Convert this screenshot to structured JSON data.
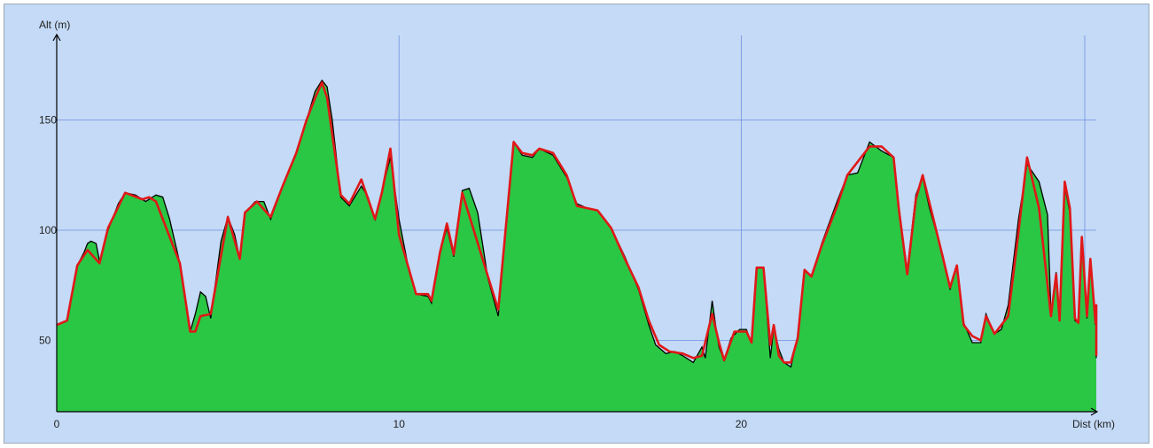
{
  "chart_data": {
    "type": "area",
    "title": "",
    "xlabel": "Dist (km)",
    "ylabel": "Alt (m)",
    "xlim": [
      0,
      30.4
    ],
    "ylim": [
      18,
      185
    ],
    "x_ticks": [
      0,
      10,
      20
    ],
    "y_ticks": [
      50,
      100,
      150
    ],
    "grid": true,
    "colors": {
      "background": "#c4daf6",
      "frame": "#9aa8b8",
      "grid": "#6f8fe0",
      "fill": "#2ac744",
      "profile_line": "#000000",
      "smoothed_line": "#e01818"
    },
    "series": [
      {
        "values": [
          [
            0.0,
            57
          ],
          [
            0.3,
            59
          ],
          [
            0.6,
            84
          ],
          [
            0.8,
            90
          ],
          [
            0.9,
            94
          ],
          [
            1.0,
            95
          ],
          [
            1.15,
            94
          ],
          [
            1.25,
            86
          ],
          [
            1.5,
            100
          ],
          [
            1.8,
            112
          ],
          [
            2.0,
            117
          ],
          [
            2.3,
            116
          ],
          [
            2.6,
            113
          ],
          [
            2.9,
            116
          ],
          [
            3.1,
            115
          ],
          [
            3.3,
            105
          ],
          [
            3.6,
            85
          ],
          [
            3.9,
            54
          ],
          [
            4.05,
            62
          ],
          [
            4.2,
            72
          ],
          [
            4.35,
            70
          ],
          [
            4.5,
            60
          ],
          [
            4.8,
            95
          ],
          [
            5.0,
            106
          ],
          [
            5.2,
            98
          ],
          [
            5.35,
            87
          ],
          [
            5.5,
            108
          ],
          [
            5.8,
            113
          ],
          [
            6.05,
            113
          ],
          [
            6.25,
            105
          ],
          [
            6.6,
            120
          ],
          [
            7.0,
            135
          ],
          [
            7.3,
            150
          ],
          [
            7.55,
            163
          ],
          [
            7.75,
            168
          ],
          [
            7.9,
            165
          ],
          [
            8.05,
            150
          ],
          [
            8.3,
            115
          ],
          [
            8.55,
            111
          ],
          [
            8.9,
            120
          ],
          [
            9.1,
            115
          ],
          [
            9.3,
            105
          ],
          [
            9.5,
            118
          ],
          [
            9.75,
            133
          ],
          [
            10.0,
            105
          ],
          [
            10.3,
            81
          ],
          [
            10.5,
            71
          ],
          [
            10.85,
            70
          ],
          [
            10.95,
            67
          ],
          [
            11.2,
            90
          ],
          [
            11.4,
            101
          ],
          [
            11.6,
            88
          ],
          [
            11.85,
            118
          ],
          [
            12.05,
            119
          ],
          [
            12.3,
            108
          ],
          [
            12.6,
            78
          ],
          [
            12.9,
            61
          ],
          [
            13.1,
            97
          ],
          [
            13.35,
            140
          ],
          [
            13.6,
            134
          ],
          [
            13.9,
            133
          ],
          [
            14.1,
            137
          ],
          [
            14.5,
            134
          ],
          [
            14.9,
            124
          ],
          [
            15.2,
            112
          ],
          [
            15.5,
            110
          ],
          [
            15.8,
            109
          ],
          [
            16.2,
            101
          ],
          [
            16.6,
            88
          ],
          [
            17.0,
            73
          ],
          [
            17.3,
            57
          ],
          [
            17.5,
            48
          ],
          [
            17.8,
            44
          ],
          [
            18.05,
            45
          ],
          [
            18.3,
            43
          ],
          [
            18.6,
            40
          ],
          [
            18.85,
            47
          ],
          [
            18.95,
            42
          ],
          [
            19.15,
            68
          ],
          [
            19.25,
            57
          ],
          [
            19.35,
            47
          ],
          [
            19.5,
            41
          ],
          [
            19.7,
            51
          ],
          [
            19.95,
            55
          ],
          [
            20.15,
            55
          ],
          [
            20.3,
            49
          ],
          [
            20.45,
            83
          ],
          [
            20.65,
            83
          ],
          [
            20.85,
            42
          ],
          [
            20.95,
            56
          ],
          [
            21.1,
            46
          ],
          [
            21.25,
            40
          ],
          [
            21.45,
            38
          ],
          [
            21.65,
            52
          ],
          [
            21.85,
            82
          ],
          [
            22.05,
            79
          ],
          [
            22.35,
            94
          ],
          [
            22.8,
            113
          ],
          [
            23.1,
            125
          ],
          [
            23.4,
            126
          ],
          [
            23.75,
            140
          ],
          [
            24.1,
            136
          ],
          [
            24.45,
            133
          ],
          [
            24.6,
            110
          ],
          [
            24.85,
            82
          ],
          [
            25.1,
            116
          ],
          [
            25.3,
            124
          ],
          [
            25.5,
            110
          ],
          [
            25.9,
            88
          ],
          [
            26.1,
            73
          ],
          [
            26.3,
            84
          ],
          [
            26.5,
            58
          ],
          [
            26.75,
            49
          ],
          [
            27.0,
            49
          ],
          [
            27.15,
            62
          ],
          [
            27.4,
            53
          ],
          [
            27.6,
            55
          ],
          [
            27.8,
            66
          ],
          [
            28.1,
            105
          ],
          [
            28.35,
            130
          ],
          [
            28.7,
            122
          ],
          [
            28.95,
            107
          ],
          [
            29.05,
            62
          ],
          [
            29.2,
            81
          ],
          [
            29.3,
            60
          ],
          [
            29.45,
            120
          ],
          [
            29.6,
            108
          ],
          [
            29.75,
            59
          ],
          [
            29.85,
            58
          ],
          [
            29.95,
            97
          ],
          [
            30.1,
            60
          ],
          [
            30.2,
            87
          ],
          [
            30.35,
            57
          ],
          [
            30.5,
            66
          ],
          [
            30.6,
            45
          ],
          [
            30.75,
            45
          ],
          [
            30.85,
            43
          ],
          [
            31.05,
            43
          ],
          [
            31.15,
            42
          ],
          [
            31.25,
            43
          ],
          [
            31.4,
            42
          ]
        ]
      },
      {
        "values": [
          [
            0.0,
            57
          ],
          [
            0.3,
            59
          ],
          [
            0.6,
            84
          ],
          [
            0.9,
            91
          ],
          [
            1.25,
            85
          ],
          [
            1.5,
            101
          ],
          [
            2.0,
            117
          ],
          [
            2.5,
            114
          ],
          [
            2.7,
            115
          ],
          [
            2.9,
            113
          ],
          [
            3.6,
            85
          ],
          [
            3.9,
            54
          ],
          [
            4.05,
            54
          ],
          [
            4.2,
            61
          ],
          [
            4.5,
            62
          ],
          [
            5.0,
            106
          ],
          [
            5.35,
            87
          ],
          [
            5.5,
            108
          ],
          [
            5.85,
            113
          ],
          [
            6.25,
            106
          ],
          [
            6.6,
            120
          ],
          [
            7.0,
            135
          ],
          [
            7.3,
            150
          ],
          [
            7.55,
            160
          ],
          [
            7.75,
            167
          ],
          [
            7.9,
            160
          ],
          [
            8.3,
            116
          ],
          [
            8.55,
            112
          ],
          [
            8.9,
            123
          ],
          [
            9.3,
            105
          ],
          [
            9.5,
            117
          ],
          [
            9.75,
            137
          ],
          [
            10.0,
            98
          ],
          [
            10.5,
            71
          ],
          [
            10.85,
            71
          ],
          [
            10.95,
            68
          ],
          [
            11.2,
            90
          ],
          [
            11.4,
            103
          ],
          [
            11.6,
            89
          ],
          [
            11.85,
            117
          ],
          [
            12.6,
            79
          ],
          [
            12.9,
            64
          ],
          [
            13.35,
            140
          ],
          [
            13.6,
            135
          ],
          [
            13.9,
            134
          ],
          [
            14.1,
            137
          ],
          [
            14.5,
            135
          ],
          [
            14.9,
            125
          ],
          [
            15.2,
            111
          ],
          [
            15.8,
            109
          ],
          [
            16.2,
            101
          ],
          [
            16.6,
            87
          ],
          [
            17.0,
            74
          ],
          [
            17.3,
            59
          ],
          [
            17.6,
            48
          ],
          [
            17.9,
            45
          ],
          [
            18.3,
            44
          ],
          [
            18.6,
            42
          ],
          [
            18.85,
            43
          ],
          [
            19.15,
            62
          ],
          [
            19.35,
            49
          ],
          [
            19.5,
            41
          ],
          [
            19.8,
            54
          ],
          [
            20.15,
            54
          ],
          [
            20.3,
            49
          ],
          [
            20.45,
            83
          ],
          [
            20.65,
            83
          ],
          [
            20.85,
            48
          ],
          [
            20.95,
            57
          ],
          [
            21.1,
            43
          ],
          [
            21.25,
            40
          ],
          [
            21.45,
            40
          ],
          [
            21.65,
            51
          ],
          [
            21.85,
            82
          ],
          [
            22.05,
            79
          ],
          [
            22.35,
            93
          ],
          [
            22.8,
            111
          ],
          [
            23.1,
            125
          ],
          [
            23.75,
            138
          ],
          [
            24.1,
            138
          ],
          [
            24.45,
            133
          ],
          [
            24.6,
            110
          ],
          [
            24.85,
            80
          ],
          [
            25.1,
            114
          ],
          [
            25.3,
            125
          ],
          [
            25.9,
            87
          ],
          [
            26.1,
            74
          ],
          [
            26.3,
            84
          ],
          [
            26.5,
            57
          ],
          [
            26.75,
            52
          ],
          [
            27.0,
            50
          ],
          [
            27.15,
            61
          ],
          [
            27.4,
            53
          ],
          [
            27.8,
            61
          ],
          [
            28.1,
            99
          ],
          [
            28.35,
            133
          ],
          [
            28.7,
            110
          ],
          [
            29.05,
            61
          ],
          [
            29.2,
            80
          ],
          [
            29.3,
            59
          ],
          [
            29.45,
            122
          ],
          [
            29.6,
            110
          ],
          [
            29.75,
            60
          ],
          [
            29.85,
            58
          ],
          [
            29.95,
            97
          ],
          [
            30.1,
            61
          ],
          [
            30.2,
            87
          ],
          [
            30.35,
            58
          ],
          [
            30.5,
            66
          ],
          [
            30.6,
            45
          ],
          [
            30.75,
            45
          ],
          [
            30.85,
            43
          ],
          [
            31.4,
            43
          ]
        ]
      }
    ]
  }
}
